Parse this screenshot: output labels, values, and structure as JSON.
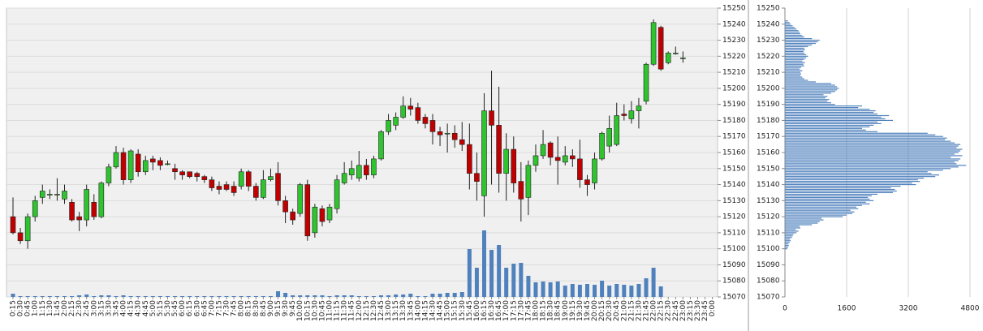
{
  "chart_data": [
    {
      "type": "candlestick",
      "categories": [
        "0:15",
        "0:30",
        "0:45",
        "1:00",
        "1:15",
        "1:30",
        "1:45",
        "2:00",
        "2:15",
        "2:30",
        "2:45",
        "3:00",
        "3:15",
        "3:30",
        "3:45",
        "4:00",
        "4:15",
        "4:30",
        "4:45",
        "5:00",
        "5:15",
        "5:30",
        "5:45",
        "6:00",
        "6:15",
        "6:30",
        "6:45",
        "7:00",
        "7:15",
        "7:30",
        "7:45",
        "8:00",
        "8:15",
        "8:30",
        "8:45",
        "9:00",
        "9:15",
        "9:30",
        "9:45",
        "10:00",
        "10:15",
        "10:30",
        "10:45",
        "11:00",
        "11:15",
        "11:30",
        "11:45",
        "12:00",
        "12:15",
        "12:30",
        "12:45",
        "13:00",
        "13:15",
        "13:30",
        "13:45",
        "14:00",
        "14:15",
        "14:30",
        "14:45",
        "15:00",
        "15:15",
        "15:30",
        "15:45",
        "16:00",
        "16:15",
        "16:30",
        "16:45",
        "17:00",
        "17:15",
        "17:30",
        "17:45",
        "18:00",
        "18:15",
        "18:30",
        "18:45",
        "19:00",
        "19:15",
        "19:30",
        "19:45",
        "20:00",
        "20:15",
        "20:30",
        "20:45",
        "21:00",
        "21:15",
        "21:30",
        "21:45",
        "22:00",
        "22:15",
        "22:30",
        "22:45",
        "23:00",
        "23:15",
        "23:30",
        "23:45",
        "0:00"
      ],
      "open": [
        15120,
        15110,
        15105,
        15120,
        15132,
        15134,
        15134,
        15131,
        15129,
        15120,
        15118,
        15129,
        15120,
        15141,
        15151,
        15160,
        15143,
        15159,
        15148,
        15156,
        15155,
        15153,
        15150,
        15148,
        15148,
        15147,
        15145,
        15143,
        15139,
        15140,
        15139,
        15139,
        15148,
        15139,
        15132,
        15143,
        15147,
        15130,
        15123,
        15122,
        15140,
        15110,
        15125,
        15118,
        15125,
        15141,
        15146,
        15144,
        15152,
        15146,
        15156,
        15173,
        15177,
        15182,
        15189,
        15188,
        15182,
        15180,
        15173,
        15172,
        15172,
        15168,
        15165,
        15147,
        15133,
        15186,
        15177,
        15147,
        15162,
        15142,
        15132,
        15152,
        15158,
        15166,
        15157,
        15154,
        15158,
        15156,
        15143,
        15141,
        15156,
        15164,
        15165,
        15184,
        15181,
        15186,
        15192,
        15215,
        15238,
        15216,
        15222,
        15219,
        null,
        null,
        null,
        null
      ],
      "high": [
        15132,
        15113,
        15122,
        15133,
        15140,
        15137,
        15144,
        15140,
        15131,
        15123,
        15140,
        15134,
        15142,
        15153,
        15164,
        15163,
        15162,
        15162,
        15158,
        15158,
        15157,
        15155,
        15153,
        15149,
        15148,
        15148,
        15146,
        15145,
        15142,
        15142,
        15142,
        15150,
        15149,
        15141,
        15149,
        15150,
        15154,
        15133,
        15125,
        15141,
        15143,
        15128,
        15127,
        15128,
        15146,
        15154,
        15155,
        15161,
        15156,
        15158,
        15174,
        15184,
        15185,
        15195,
        15194,
        15191,
        15184,
        15184,
        15176,
        15178,
        15177,
        15179,
        15178,
        15160,
        15197,
        15211,
        15201,
        15172,
        15170,
        15154,
        15155,
        15165,
        15174,
        15167,
        15170,
        15164,
        15162,
        15168,
        15146,
        15160,
        15173,
        15183,
        15191,
        15190,
        15192,
        15194,
        15216,
        15243,
        15239,
        15223,
        15226,
        15223,
        null,
        null,
        null,
        null
      ],
      "low": [
        15109,
        15103,
        15100,
        15117,
        15128,
        15131,
        15130,
        15128,
        15117,
        15111,
        15114,
        15118,
        15119,
        15139,
        15150,
        15140,
        15141,
        15145,
        15146,
        15149,
        15149,
        15152,
        15143,
        15143,
        15144,
        15142,
        15141,
        15136,
        15134,
        15136,
        15133,
        15137,
        15136,
        15130,
        15131,
        15142,
        15127,
        15116,
        15115,
        15120,
        15105,
        15107,
        15114,
        15116,
        15122,
        15140,
        15143,
        15142,
        15143,
        15144,
        15155,
        15171,
        15174,
        15181,
        15183,
        15178,
        15175,
        15165,
        15164,
        15160,
        15163,
        15161,
        15137,
        15130,
        15120,
        15140,
        15135,
        15130,
        15135,
        15117,
        15121,
        15148,
        15156,
        15152,
        15140,
        15152,
        15151,
        15138,
        15133,
        15137,
        15155,
        15160,
        15164,
        15180,
        15178,
        15175,
        15190,
        15214,
        15211,
        15215,
        15221,
        15216,
        null,
        null,
        null,
        null
      ],
      "close": [
        15110,
        15105,
        15120,
        15130,
        15136,
        15134,
        15134,
        15136,
        15118,
        15118,
        15137,
        15120,
        15141,
        15151,
        15160,
        15143,
        15161,
        15148,
        15155,
        15154,
        15152,
        15153,
        15148,
        15146,
        15145,
        15145,
        15143,
        15138,
        15137,
        15137,
        15135,
        15148,
        15139,
        15132,
        15143,
        15145,
        15130,
        15123,
        15118,
        15140,
        15108,
        15126,
        15117,
        15126,
        15143,
        15147,
        15150,
        15152,
        15146,
        15156,
        15173,
        15180,
        15182,
        15189,
        15187,
        15180,
        15178,
        15173,
        15171,
        15172,
        15168,
        15165,
        15147,
        15142,
        15186,
        15177,
        15147,
        15162,
        15141,
        15131,
        15152,
        15158,
        15165,
        15157,
        15155,
        15158,
        15156,
        15143,
        15140,
        15156,
        15172,
        15175,
        15183,
        15183,
        15186,
        15189,
        15215,
        15241,
        15212,
        15222,
        15222,
        15219,
        null,
        null,
        null,
        null
      ],
      "volume": [
        4,
        1,
        1,
        1,
        1,
        1,
        1,
        1,
        1,
        2,
        3,
        1,
        2,
        2,
        1,
        2,
        1,
        1,
        1,
        1,
        1,
        1,
        1,
        1,
        1,
        1,
        1,
        1,
        1,
        1,
        1,
        1,
        1,
        1,
        1,
        1,
        7,
        5,
        2,
        2,
        2,
        2,
        2,
        1,
        2,
        2,
        2,
        1,
        1,
        1,
        2,
        2,
        3,
        3,
        4,
        1,
        1,
        4,
        4,
        5,
        5,
        6,
        59,
        36,
        82,
        58,
        64,
        36,
        41,
        42,
        26,
        18,
        19,
        18,
        19,
        14,
        16,
        15,
        16,
        15,
        20,
        14,
        16,
        15,
        14,
        16,
        23,
        36,
        13,
        0,
        0,
        0,
        null,
        null,
        null,
        null
      ],
      "up_color": "#2fc42f",
      "down_color": "#c00000",
      "volume_color": "#4f81bd",
      "ylim": [
        15070,
        15250
      ],
      "yticks": [
        15070,
        15080,
        15090,
        15100,
        15110,
        15120,
        15130,
        15140,
        15150,
        15160,
        15170,
        15180,
        15190,
        15200,
        15210,
        15220,
        15230,
        15240,
        15250
      ],
      "grid": true
    },
    {
      "type": "barh",
      "levels": [
        15100,
        15101,
        15102,
        15103,
        15104,
        15105,
        15106,
        15107,
        15108,
        15109,
        15110,
        15111,
        15112,
        15113,
        15114,
        15115,
        15116,
        15117,
        15118,
        15119,
        15120,
        15121,
        15122,
        15123,
        15124,
        15125,
        15126,
        15127,
        15128,
        15129,
        15130,
        15131,
        15132,
        15133,
        15134,
        15135,
        15136,
        15137,
        15138,
        15139,
        15140,
        15141,
        15142,
        15143,
        15144,
        15145,
        15146,
        15147,
        15148,
        15149,
        15150,
        15151,
        15152,
        15153,
        15154,
        15155,
        15156,
        15157,
        15158,
        15159,
        15160,
        15161,
        15162,
        15163,
        15164,
        15165,
        15166,
        15167,
        15168,
        15169,
        15170,
        15171,
        15172,
        15173,
        15174,
        15175,
        15176,
        15177,
        15178,
        15179,
        15180,
        15181,
        15182,
        15183,
        15184,
        15185,
        15186,
        15187,
        15188,
        15189,
        15190,
        15191,
        15192,
        15193,
        15194,
        15195,
        15196,
        15197,
        15198,
        15199,
        15200,
        15201,
        15202,
        15203,
        15204,
        15205,
        15206,
        15207,
        15208,
        15209,
        15210,
        15211,
        15212,
        15213,
        15214,
        15215,
        15216,
        15217,
        15218,
        15219,
        15220,
        15221,
        15222,
        15223,
        15224,
        15225,
        15226,
        15227,
        15228,
        15229,
        15230,
        15231,
        15232,
        15233,
        15234,
        15235,
        15236,
        15237,
        15238,
        15239,
        15240,
        15241,
        15242
      ],
      "values": [
        60,
        80,
        100,
        90,
        120,
        150,
        130,
        180,
        200,
        220,
        300,
        350,
        280,
        400,
        380,
        700,
        850,
        900,
        1000,
        950,
        1500,
        1600,
        1750,
        1800,
        1700,
        1900,
        1850,
        2000,
        2200,
        2100,
        2300,
        2200,
        2150,
        2250,
        2400,
        2800,
        2900,
        2850,
        2750,
        3000,
        3400,
        3300,
        3500,
        3450,
        3600,
        3900,
        4000,
        3800,
        3700,
        4100,
        4300,
        4500,
        4700,
        4450,
        4400,
        4500,
        4550,
        4300,
        4600,
        4400,
        4500,
        4550,
        4600,
        4450,
        4500,
        4550,
        4400,
        4300,
        4150,
        4200,
        4100,
        3900,
        3700,
        2400,
        2100,
        2000,
        2200,
        2300,
        2500,
        2400,
        2800,
        2600,
        2500,
        2700,
        2400,
        2300,
        2350,
        2200,
        1900,
        2000,
        1300,
        1200,
        1100,
        1150,
        1050,
        1100,
        1000,
        1200,
        1300,
        1350,
        1400,
        1350,
        1300,
        1200,
        800,
        600,
        500,
        450,
        400,
        420,
        400,
        450,
        380,
        420,
        500,
        480,
        520,
        450,
        500,
        550,
        600,
        550,
        500,
        480,
        520,
        500,
        600,
        700,
        800,
        850,
        900,
        700,
        500,
        450,
        400,
        380,
        350,
        300,
        250,
        200,
        150,
        120,
        80
      ],
      "color": "#4f81bd",
      "xlim": [
        0,
        4800
      ],
      "xticks": [
        0,
        1600,
        3200,
        4800
      ],
      "ylim": [
        15070,
        15250
      ],
      "yticks": [
        15070,
        15080,
        15090,
        15100,
        15110,
        15120,
        15130,
        15140,
        15150,
        15160,
        15170,
        15180,
        15190,
        15200,
        15210,
        15220,
        15230,
        15240,
        15250
      ],
      "grid": true
    }
  ]
}
